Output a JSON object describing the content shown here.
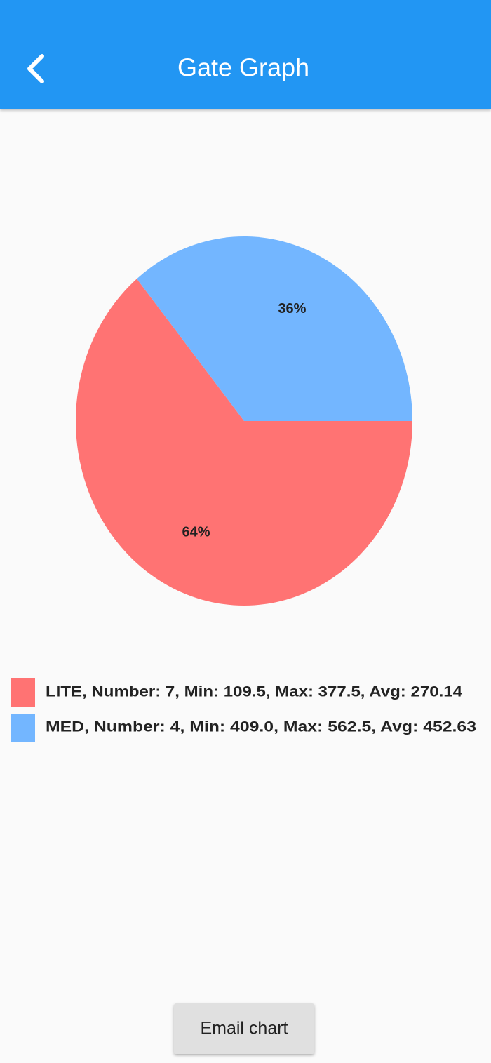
{
  "header": {
    "title": "Gate Graph"
  },
  "chart_data": {
    "type": "pie",
    "categories": [
      "LITE, Number: 7, Min: 109.5, Max: 377.5, Avg: 270.14",
      "MED, Number: 4, Min: 409.0, Max: 562.5, Avg: 452.63"
    ],
    "values": [
      64,
      36
    ],
    "value_labels": [
      "64%",
      "36%"
    ],
    "colors": [
      "#ff7373",
      "#73b6ff"
    ]
  },
  "button": {
    "label": "Email chart"
  }
}
